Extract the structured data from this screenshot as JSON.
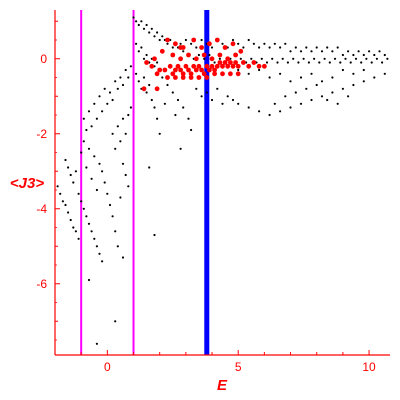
{
  "chart_data": {
    "type": "scatter",
    "title": "",
    "xlabel": "E",
    "ylabel": "<J3>",
    "xlim": [
      -2.0,
      10.8
    ],
    "ylim": [
      -7.9,
      1.3
    ],
    "x_ticks": [
      0,
      5,
      10
    ],
    "y_ticks": [
      -6,
      -4,
      -2,
      0
    ],
    "grid": false,
    "legend": "none",
    "colors": {
      "axes": "#ff0000",
      "black_points": "#000000",
      "red_points": "#ff0000",
      "magenta_lines": "#ff00ff",
      "blue_line": "#0000ff"
    },
    "vertical_lines": [
      {
        "x": -1.0,
        "color": "#ff00ff"
      },
      {
        "x": 1.0,
        "color": "#ff00ff"
      },
      {
        "x": 3.8,
        "color": "#0000ff"
      }
    ],
    "series": [
      {
        "color": "#000000",
        "points": [
          [
            -1.9,
            -3.4
          ],
          [
            -1.8,
            -3.6
          ],
          [
            -1.7,
            -3.8
          ],
          [
            -1.6,
            -3.9
          ],
          [
            -1.5,
            -4.1
          ],
          [
            -1.4,
            -4.3
          ],
          [
            -1.3,
            -4.5
          ],
          [
            -1.2,
            -4.6
          ],
          [
            -1.1,
            -4.8
          ],
          [
            -1.6,
            -2.7
          ],
          [
            -1.5,
            -2.9
          ],
          [
            -1.4,
            -3.1
          ],
          [
            -1.3,
            -3.3
          ],
          [
            -1.2,
            -3.0
          ],
          [
            -1.1,
            -3.6
          ],
          [
            -1.0,
            -3.8
          ],
          [
            -0.9,
            -4.0
          ],
          [
            -0.8,
            -4.2
          ],
          [
            -0.7,
            -4.4
          ],
          [
            -0.6,
            -4.6
          ],
          [
            -0.5,
            -4.8
          ],
          [
            -0.4,
            -5.0
          ],
          [
            -0.3,
            -5.2
          ],
          [
            -0.2,
            -5.4
          ],
          [
            -1.0,
            -2.5
          ],
          [
            -0.9,
            -2.2
          ],
          [
            -0.8,
            -2.9
          ],
          [
            -0.7,
            -2.4
          ],
          [
            -0.6,
            -3.2
          ],
          [
            -0.5,
            -2.6
          ],
          [
            -0.4,
            -3.5
          ],
          [
            -0.3,
            -2.8
          ],
          [
            -0.2,
            -3.0
          ],
          [
            -0.1,
            -3.3
          ],
          [
            0.0,
            -3.6
          ],
          [
            0.1,
            -3.9
          ],
          [
            0.2,
            -4.2
          ],
          [
            0.3,
            -4.6
          ],
          [
            0.4,
            -5.0
          ],
          [
            -0.9,
            -1.6
          ],
          [
            -0.8,
            -1.9
          ],
          [
            -0.7,
            -1.4
          ],
          [
            -0.6,
            -1.8
          ],
          [
            -0.5,
            -1.2
          ],
          [
            -0.4,
            -1.6
          ],
          [
            -0.3,
            -1.0
          ],
          [
            -0.2,
            -1.4
          ],
          [
            -0.1,
            -0.8
          ],
          [
            0.0,
            -1.2
          ],
          [
            0.1,
            -0.9
          ],
          [
            0.2,
            -1.1
          ],
          [
            0.3,
            -0.6
          ],
          [
            0.4,
            -0.8
          ],
          [
            0.5,
            -0.5
          ],
          [
            0.6,
            -0.7
          ],
          [
            0.7,
            -0.3
          ],
          [
            0.8,
            -0.5
          ],
          [
            0.9,
            -0.2
          ],
          [
            0.2,
            -2.0
          ],
          [
            0.3,
            -2.4
          ],
          [
            0.4,
            -1.8
          ],
          [
            0.5,
            -2.2
          ],
          [
            0.6,
            -1.6
          ],
          [
            0.7,
            -2.0
          ],
          [
            0.8,
            -1.5
          ],
          [
            0.9,
            -1.3
          ],
          [
            0.6,
            -2.8
          ],
          [
            0.7,
            -3.1
          ],
          [
            0.8,
            -3.4
          ],
          [
            0.5,
            -3.7
          ],
          [
            0.6,
            -5.3
          ],
          [
            0.3,
            -7.0
          ],
          [
            -0.4,
            -7.6
          ],
          [
            -0.7,
            -5.9
          ],
          [
            1.0,
            1.1
          ],
          [
            1.1,
            1.0
          ],
          [
            1.2,
            0.9
          ],
          [
            1.3,
            1.0
          ],
          [
            1.4,
            0.8
          ],
          [
            1.5,
            0.9
          ],
          [
            1.6,
            0.7
          ],
          [
            1.7,
            0.8
          ],
          [
            1.8,
            0.6
          ],
          [
            1.9,
            0.7
          ],
          [
            2.0,
            0.5
          ],
          [
            2.1,
            0.6
          ],
          [
            2.2,
            0.5
          ],
          [
            2.3,
            0.4
          ],
          [
            2.4,
            0.5
          ],
          [
            2.5,
            0.3
          ],
          [
            2.6,
            0.4
          ],
          [
            2.7,
            0.3
          ],
          [
            2.8,
            0.4
          ],
          [
            2.9,
            0.2
          ],
          [
            1.1,
            0.4
          ],
          [
            1.2,
            0.2
          ],
          [
            1.3,
            0.3
          ],
          [
            1.4,
            0.0
          ],
          [
            1.5,
            0.1
          ],
          [
            1.6,
            -0.1
          ],
          [
            1.7,
            0.0
          ],
          [
            1.8,
            -0.2
          ],
          [
            1.9,
            -0.1
          ],
          [
            2.0,
            -0.3
          ],
          [
            1.1,
            -0.4
          ],
          [
            1.2,
            -0.6
          ],
          [
            1.3,
            -0.8
          ],
          [
            1.4,
            -0.5
          ],
          [
            1.5,
            -0.9
          ],
          [
            1.6,
            -0.7
          ],
          [
            1.7,
            -1.1
          ],
          [
            1.8,
            -1.3
          ],
          [
            1.9,
            -1.6
          ],
          [
            2.0,
            -2.0
          ],
          [
            1.6,
            -2.9
          ],
          [
            1.8,
            -4.7
          ],
          [
            3.0,
            0.5
          ],
          [
            3.2,
            0.4
          ],
          [
            3.4,
            0.3
          ],
          [
            3.6,
            0.5
          ],
          [
            3.8,
            0.4
          ],
          [
            4.0,
            0.3
          ],
          [
            4.2,
            0.5
          ],
          [
            4.4,
            0.4
          ],
          [
            4.6,
            0.3
          ],
          [
            4.8,
            0.5
          ],
          [
            5.0,
            0.4
          ],
          [
            5.2,
            0.3
          ],
          [
            5.4,
            0.5
          ],
          [
            5.6,
            0.4
          ],
          [
            5.8,
            0.3
          ],
          [
            6.0,
            0.4
          ],
          [
            6.2,
            0.3
          ],
          [
            6.4,
            0.4
          ],
          [
            6.6,
            0.3
          ],
          [
            6.8,
            0.4
          ],
          [
            7.0,
            0.2
          ],
          [
            7.2,
            0.3
          ],
          [
            7.4,
            0.2
          ],
          [
            7.6,
            0.3
          ],
          [
            7.8,
            0.2
          ],
          [
            8.0,
            0.3
          ],
          [
            8.2,
            0.2
          ],
          [
            8.4,
            0.3
          ],
          [
            8.6,
            0.2
          ],
          [
            8.8,
            0.3
          ],
          [
            9.0,
            0.1
          ],
          [
            9.2,
            0.2
          ],
          [
            9.4,
            0.1
          ],
          [
            9.6,
            0.2
          ],
          [
            9.8,
            0.1
          ],
          [
            10.0,
            0.2
          ],
          [
            10.2,
            0.1
          ],
          [
            10.4,
            0.2
          ],
          [
            10.6,
            0.1
          ],
          [
            3.1,
            0.1
          ],
          [
            3.3,
            0.0
          ],
          [
            3.5,
            0.1
          ],
          [
            3.7,
            0.0
          ],
          [
            3.9,
            0.1
          ],
          [
            4.1,
            -0.1
          ],
          [
            4.3,
            0.0
          ],
          [
            4.5,
            -0.1
          ],
          [
            4.7,
            0.0
          ],
          [
            4.9,
            -0.1
          ],
          [
            5.1,
            0.0
          ],
          [
            5.3,
            -0.1
          ],
          [
            5.5,
            0.0
          ],
          [
            5.7,
            -0.1
          ],
          [
            5.9,
            0.0
          ],
          [
            6.1,
            -0.1
          ],
          [
            6.3,
            0.0
          ],
          [
            6.5,
            -0.1
          ],
          [
            6.7,
            0.0
          ],
          [
            6.9,
            -0.1
          ],
          [
            7.1,
            0.0
          ],
          [
            7.3,
            -0.1
          ],
          [
            7.5,
            0.0
          ],
          [
            7.7,
            -0.1
          ],
          [
            7.9,
            0.0
          ],
          [
            8.1,
            -0.1
          ],
          [
            8.3,
            0.0
          ],
          [
            8.5,
            -0.1
          ],
          [
            8.7,
            0.0
          ],
          [
            8.9,
            -0.1
          ],
          [
            9.1,
            0.0
          ],
          [
            9.3,
            -0.1
          ],
          [
            9.5,
            0.0
          ],
          [
            9.7,
            -0.1
          ],
          [
            9.9,
            0.0
          ],
          [
            10.1,
            -0.1
          ],
          [
            10.3,
            0.0
          ],
          [
            10.5,
            -0.1
          ],
          [
            10.7,
            0.0
          ],
          [
            5.0,
            -0.3
          ],
          [
            5.4,
            -0.4
          ],
          [
            5.8,
            -0.3
          ],
          [
            6.2,
            -0.5
          ],
          [
            6.6,
            -0.4
          ],
          [
            7.0,
            -0.6
          ],
          [
            7.4,
            -0.5
          ],
          [
            7.8,
            -0.4
          ],
          [
            8.2,
            -0.6
          ],
          [
            8.6,
            -0.5
          ],
          [
            9.0,
            -0.3
          ],
          [
            9.4,
            -0.4
          ],
          [
            9.8,
            -0.3
          ],
          [
            10.2,
            -0.5
          ],
          [
            10.6,
            -0.4
          ],
          [
            3.4,
            -0.8
          ],
          [
            3.6,
            -1.0
          ],
          [
            3.8,
            -0.9
          ],
          [
            4.0,
            -1.1
          ],
          [
            4.2,
            -0.8
          ],
          [
            4.4,
            -1.2
          ],
          [
            4.6,
            -1.0
          ],
          [
            4.8,
            -1.1
          ],
          [
            5.0,
            -1.2
          ],
          [
            5.4,
            -1.3
          ],
          [
            5.8,
            -1.4
          ],
          [
            6.2,
            -1.5
          ],
          [
            6.6,
            -1.4
          ],
          [
            7.0,
            -1.3
          ],
          [
            7.4,
            -1.2
          ],
          [
            7.8,
            -1.1
          ],
          [
            8.2,
            -1.0
          ],
          [
            8.6,
            -0.9
          ],
          [
            9.0,
            -0.8
          ],
          [
            9.4,
            -0.7
          ],
          [
            9.8,
            -0.6
          ],
          [
            7.2,
            -0.9
          ],
          [
            7.6,
            -0.8
          ],
          [
            8.0,
            -0.7
          ],
          [
            8.4,
            -1.1
          ],
          [
            8.8,
            -1.2
          ],
          [
            9.2,
            -1.0
          ],
          [
            6.4,
            -1.2
          ],
          [
            6.8,
            -1.0
          ],
          [
            2.1,
            -0.5
          ],
          [
            2.3,
            -0.7
          ],
          [
            2.5,
            -0.9
          ],
          [
            2.7,
            -1.1
          ],
          [
            2.9,
            -1.3
          ],
          [
            3.1,
            -1.6
          ],
          [
            3.2,
            -1.9
          ],
          [
            2.2,
            -1.2
          ],
          [
            2.6,
            -1.5
          ],
          [
            2.8,
            -2.4
          ]
        ]
      },
      {
        "color": "#ff0000",
        "points": [
          [
            2.0,
            -0.3
          ],
          [
            2.2,
            -0.3
          ],
          [
            2.4,
            -0.2
          ],
          [
            2.5,
            -0.4
          ],
          [
            2.6,
            -0.3
          ],
          [
            2.7,
            -0.2
          ],
          [
            2.8,
            -0.3
          ],
          [
            2.9,
            -0.4
          ],
          [
            3.0,
            -0.2
          ],
          [
            3.1,
            -0.3
          ],
          [
            3.2,
            -0.4
          ],
          [
            3.3,
            -0.2
          ],
          [
            3.4,
            -0.3
          ],
          [
            3.5,
            -0.2
          ],
          [
            3.6,
            -0.3
          ],
          [
            3.7,
            -0.4
          ],
          [
            3.8,
            -0.2
          ],
          [
            3.9,
            -0.3
          ],
          [
            4.0,
            -0.2
          ],
          [
            4.1,
            -0.3
          ],
          [
            4.2,
            -0.2
          ],
          [
            4.3,
            -0.1
          ],
          [
            4.4,
            -0.2
          ],
          [
            4.5,
            -0.1
          ],
          [
            4.6,
            -0.2
          ],
          [
            4.7,
            -0.1
          ],
          [
            4.8,
            -0.2
          ],
          [
            4.9,
            -0.1
          ],
          [
            5.0,
            -0.2
          ],
          [
            5.2,
            -0.1
          ],
          [
            5.4,
            -0.2
          ],
          [
            5.6,
            -0.1
          ],
          [
            5.8,
            -0.2
          ],
          [
            6.0,
            -0.2
          ],
          [
            2.3,
            -0.5
          ],
          [
            2.6,
            -0.5
          ],
          [
            2.9,
            -0.5
          ],
          [
            3.2,
            -0.5
          ],
          [
            3.5,
            -0.5
          ],
          [
            3.8,
            -0.5
          ],
          [
            4.1,
            -0.4
          ],
          [
            4.4,
            -0.4
          ],
          [
            4.7,
            -0.4
          ],
          [
            5.0,
            -0.4
          ],
          [
            2.5,
            0.1
          ],
          [
            2.8,
            0.0
          ],
          [
            3.1,
            0.1
          ],
          [
            3.4,
            0.0
          ],
          [
            3.7,
            0.1
          ],
          [
            4.0,
            0.0
          ],
          [
            4.3,
            0.1
          ],
          [
            4.6,
            0.0
          ],
          [
            4.9,
            0.1
          ],
          [
            2.6,
            0.4
          ],
          [
            2.9,
            0.3
          ],
          [
            3.3,
            0.5
          ],
          [
            3.6,
            0.3
          ],
          [
            3.9,
            0.4
          ],
          [
            4.2,
            0.5
          ],
          [
            4.5,
            0.3
          ],
          [
            4.8,
            0.4
          ],
          [
            5.1,
            0.2
          ],
          [
            1.5,
            -0.1
          ],
          [
            1.7,
            -0.2
          ],
          [
            1.9,
            -0.4
          ],
          [
            2.1,
            0.2
          ],
          [
            1.8,
            0.0
          ],
          [
            2.3,
            0.5
          ],
          [
            2.8,
            0.3
          ],
          [
            1.4,
            -0.8
          ],
          [
            1.9,
            -0.8
          ]
        ]
      }
    ]
  }
}
